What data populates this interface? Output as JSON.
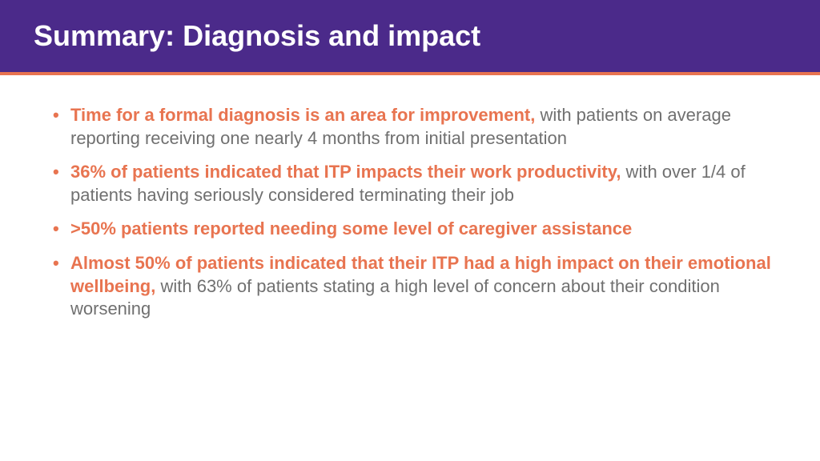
{
  "slide": {
    "title": "Summary: Diagnosis and impact",
    "colors": {
      "header_bg": "#4b2a8a",
      "accent_line": "#e87450",
      "highlight_text": "#e87450",
      "body_text": "#707070",
      "title_text": "#ffffff",
      "page_bg": "#ffffff"
    },
    "typography": {
      "title_fontsize": 36,
      "body_fontsize": 22,
      "font_family": "Arial, Helvetica, sans-serif"
    },
    "bullets": [
      {
        "highlight": "Time for a formal diagnosis is an area for improvement,",
        "rest": " with patients on average reporting receiving one nearly 4 months from initial presentation"
      },
      {
        "highlight": "36% of patients indicated that ITP impacts their work productivity,",
        "rest": " with over 1/4 of patients having seriously considered terminating their job"
      },
      {
        "highlight": ">50% patients reported needing some level of caregiver assistance",
        "rest": ""
      },
      {
        "highlight": "Almost 50% of patients indicated that their ITP had a high impact on their emotional wellbeing,",
        "rest": " with 63% of patients stating a high level of concern about their condition worsening"
      }
    ]
  }
}
